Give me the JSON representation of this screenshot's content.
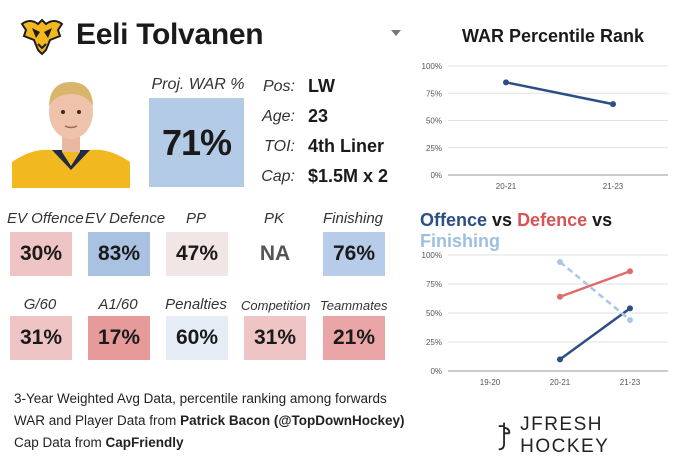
{
  "player": {
    "name": "Eeli Tolvanen"
  },
  "projected_war": {
    "label": "Proj. WAR %",
    "value": "71%"
  },
  "info": [
    {
      "label": "Pos:",
      "value": "LW"
    },
    {
      "label": "Age:",
      "value": "23"
    },
    {
      "label": "TOI:",
      "value": "4th Liner"
    },
    {
      "label": "Cap:",
      "value": "$1.5M x 2"
    }
  ],
  "stats_row1": [
    {
      "label": "EV Offence",
      "value": "30%",
      "color": "#efc4c4"
    },
    {
      "label": "EV Defence",
      "value": "83%",
      "color": "#a9c2e2"
    },
    {
      "label": "PP",
      "value": "47%",
      "color": "#f2e5e5"
    },
    {
      "label": "PK",
      "value": "NA",
      "color": "#ffffff"
    },
    {
      "label": "Finishing",
      "value": "76%",
      "color": "#b6cce8"
    }
  ],
  "stats_row2": [
    {
      "label": "G/60",
      "value": "31%",
      "color": "#efc4c4"
    },
    {
      "label": "A1/60",
      "value": "17%",
      "color": "#e79a9a"
    },
    {
      "label": "Penalties",
      "value": "60%",
      "color": "#e6edf6"
    },
    {
      "label": "Competition",
      "value": "31%",
      "color": "#efc4c4"
    },
    {
      "label": "Teammates",
      "value": "21%",
      "color": "#eaa6a6"
    }
  ],
  "footer": {
    "line1": "3-Year Weighted Avg Data, percentile ranking among forwards",
    "line2_prefix": "WAR and Player Data from ",
    "line2_bold": "Patrick Bacon (@TopDownHockey)",
    "line3_prefix": "Cap Data from ",
    "line3_bold": "CapFriendly"
  },
  "brand": {
    "name": "JFRESH HOCKEY"
  },
  "chart_data": [
    {
      "type": "line",
      "title": "WAR Percentile Rank",
      "categories": [
        "20-21",
        "21-23"
      ],
      "ylim": [
        0,
        100
      ],
      "yticks": [
        "0%",
        "25%",
        "50%",
        "75%",
        "100%"
      ],
      "grid": true,
      "series": [
        {
          "values": [
            85,
            65
          ],
          "color": "#2c4e85"
        }
      ]
    },
    {
      "type": "line",
      "title_parts": [
        {
          "text": "Offence",
          "color": "#2c4e85"
        },
        {
          "text": " vs ",
          "color": "#1a1a1a"
        },
        {
          "text": "Defence",
          "color": "#d75454"
        },
        {
          "text": " vs ",
          "color": "#1a1a1a"
        },
        {
          "text": "Finishing",
          "color": "#9dbfe3"
        }
      ],
      "categories": [
        "19-20",
        "20-21",
        "21-23"
      ],
      "ylim": [
        0,
        100
      ],
      "yticks": [
        "0%",
        "25%",
        "50%",
        "75%",
        "100%"
      ],
      "grid": true,
      "series": [
        {
          "values": [
            null,
            10,
            54
          ],
          "color": "#2c4e85",
          "dashed": false
        },
        {
          "values": [
            null,
            64,
            86
          ],
          "color": "#df6b6b",
          "dashed": false
        },
        {
          "values": [
            null,
            94,
            44
          ],
          "color": "#a9c6e6",
          "dashed": true
        }
      ]
    }
  ]
}
